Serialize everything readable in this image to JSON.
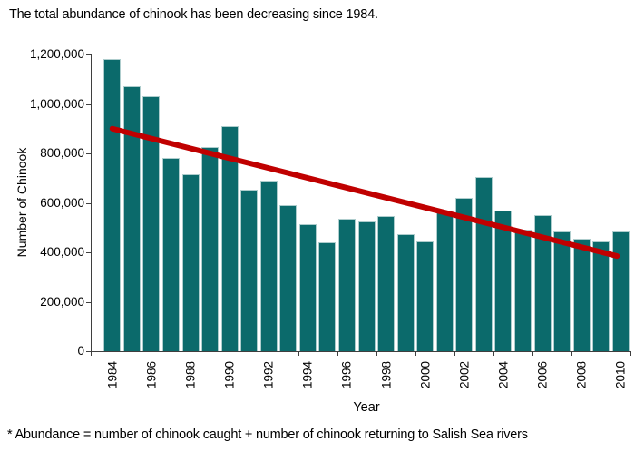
{
  "page": {
    "title": "The total abundance of chinook has been decreasing since 1984.",
    "footnote": "* Abundance = number of chinook caught + number of chinook returning to Salish Sea rivers"
  },
  "chart_data": {
    "type": "bar",
    "title": "The total abundance of chinook has been decreasing since 1984.",
    "xlabel": "Year",
    "ylabel": "Number of Chinook",
    "footnote": "* Abundance = number of chinook caught + number of chinook returning to Salish Sea rivers",
    "categories": [
      1984,
      1985,
      1986,
      1987,
      1988,
      1989,
      1990,
      1991,
      1992,
      1993,
      1994,
      1995,
      1996,
      1997,
      1998,
      1999,
      2000,
      2001,
      2002,
      2003,
      2004,
      2005,
      2006,
      2007,
      2008,
      2009,
      2010
    ],
    "values": [
      1180000,
      1070000,
      1030000,
      780000,
      715000,
      825000,
      910000,
      655000,
      690000,
      590000,
      515000,
      440000,
      535000,
      525000,
      545000,
      475000,
      445000,
      560000,
      620000,
      705000,
      570000,
      490000,
      550000,
      485000,
      455000,
      445000,
      485000
    ],
    "ylim": [
      0,
      1200000
    ],
    "ytick_step": 200000,
    "xtick_label_interval": 2,
    "grid": false,
    "legend_position": "none",
    "trendline": {
      "type": "linear",
      "start_year": 1984,
      "start_value": 900000,
      "end_year": 2010,
      "end_value": 385000
    },
    "colors": {
      "bar": "#0b6a6b",
      "bar_edge": "#aecdcd",
      "trend": "#c00000",
      "axis": "#3f3f3f",
      "text": "#000000"
    }
  }
}
